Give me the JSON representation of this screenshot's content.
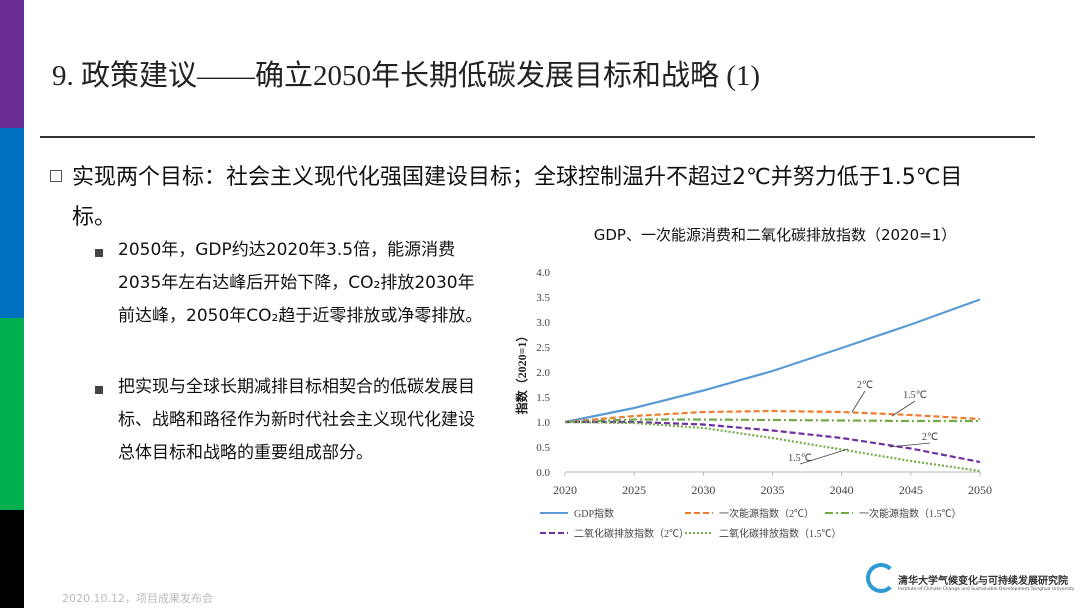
{
  "header": {
    "title": "9. 政策建议——确立2050年长期低碳发展目标和战略 (1)"
  },
  "bullets": {
    "main": "实现两个目标：社会主义现代化强国建设目标；全球控制温升不超过2℃并努力低于1.5℃目标。",
    "sub": [
      "2050年，GDP约达2020年3.5倍，能源消费2035年左右达峰后开始下降，CO₂排放2030年前达峰，2050年CO₂趋于近零排放或净零排放。",
      "把实现与全球长期减排目标相契合的低碳发展目标、战略和路径作为新时代社会主义现代化建设总体目标和战略的重要组成部分。"
    ]
  },
  "footer": {
    "date": "2020.10.12，项目成果发布会",
    "org_cn": "清华大学气候变化与可持续发展研究院",
    "org_en": "Institute of Climate Change and Sustainable Development,Tsinghua University"
  },
  "chart_data": {
    "type": "line",
    "title": "GDP、一次能源消费和二氧化碳排放指数（2020=1）",
    "y_label": "指数（2020=1）",
    "x": [
      2020,
      2025,
      2030,
      2035,
      2040,
      2045,
      2050
    ],
    "xlim": [
      2020,
      2050
    ],
    "xticks": [
      2020,
      2025,
      2030,
      2035,
      2040,
      2045,
      2050
    ],
    "ylim": [
      0,
      4
    ],
    "yticks": [
      {
        "value": 0,
        "label": "0.0"
      },
      0.5,
      {
        "value": 1,
        "label": "1.0"
      },
      1.5,
      {
        "value": 2,
        "label": "2.0"
      },
      2.5,
      {
        "value": 3,
        "label": "3.0"
      },
      3.5,
      {
        "value": 4,
        "label": "4.0"
      }
    ],
    "grid": false,
    "series": [
      {
        "name": "GDP指数",
        "color": "#5b9bd5",
        "line_style": "solid",
        "values": [
          1.0,
          1.28,
          1.63,
          2.02,
          2.48,
          2.95,
          3.45
        ]
      },
      {
        "name": "一次能源指数（2℃）",
        "color": "#ed7d31",
        "line_style": "dashed",
        "values": [
          1.0,
          1.12,
          1.2,
          1.22,
          1.2,
          1.14,
          1.06
        ]
      },
      {
        "name": "一次能源指数（1.5℃）",
        "color": "#70ad47",
        "line_style": "dashdot",
        "values": [
          1.0,
          1.05,
          1.05,
          1.04,
          1.03,
          1.02,
          1.02
        ]
      },
      {
        "name": "二氧化碳排放指数（2℃）",
        "color": "#7030a0",
        "line_style": "dashed",
        "values": [
          1.0,
          1.0,
          0.95,
          0.83,
          0.68,
          0.47,
          0.2
        ]
      },
      {
        "name": "二氧化碳排放指数（1.5℃）",
        "color": "#70ad47",
        "line_style": "dotted",
        "values": [
          1.0,
          0.98,
          0.88,
          0.68,
          0.45,
          0.22,
          0.02
        ]
      }
    ],
    "annotations": [
      "2℃",
      "1.5℃",
      "2℃",
      "1.5℃"
    ]
  }
}
